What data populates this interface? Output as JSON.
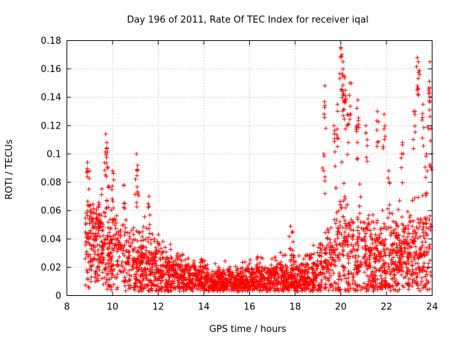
{
  "chart_data": {
    "type": "scatter",
    "title": "Day 196 of 2011, Rate Of TEC Index for receiver iqal",
    "xlabel": "GPS time / hours",
    "ylabel": "ROTI / TECUs",
    "xlim": [
      8,
      24
    ],
    "ylim": [
      0,
      0.18
    ],
    "xticks": [
      "8",
      "10",
      "12",
      "14",
      "16",
      "18",
      "20",
      "22",
      "24"
    ],
    "yticks": [
      "0",
      "0.02",
      "0.04",
      "0.06",
      "0.08",
      "0.1",
      "0.12",
      "0.14",
      "0.16",
      "0.18"
    ],
    "grid": true,
    "marker": "+",
    "color": "#ff0000",
    "series": [
      {
        "name": "ROTI",
        "envelope": [
          {
            "x": 8.8,
            "base": 0.035,
            "spread": 0.03
          },
          {
            "x": 9.5,
            "base": 0.035,
            "spread": 0.035
          },
          {
            "x": 10.5,
            "base": 0.028,
            "spread": 0.03
          },
          {
            "x": 11.5,
            "base": 0.02,
            "spread": 0.03
          },
          {
            "x": 12.5,
            "base": 0.015,
            "spread": 0.02
          },
          {
            "x": 13.5,
            "base": 0.012,
            "spread": 0.016
          },
          {
            "x": 14.5,
            "base": 0.01,
            "spread": 0.012
          },
          {
            "x": 15.5,
            "base": 0.01,
            "spread": 0.012
          },
          {
            "x": 16.5,
            "base": 0.012,
            "spread": 0.014
          },
          {
            "x": 17.5,
            "base": 0.012,
            "spread": 0.015
          },
          {
            "x": 18.5,
            "base": 0.012,
            "spread": 0.015
          },
          {
            "x": 19.2,
            "base": 0.02,
            "spread": 0.025
          },
          {
            "x": 20.0,
            "base": 0.035,
            "spread": 0.05
          },
          {
            "x": 21.0,
            "base": 0.03,
            "spread": 0.04
          },
          {
            "x": 22.0,
            "base": 0.025,
            "spread": 0.03
          },
          {
            "x": 23.0,
            "base": 0.03,
            "spread": 0.035
          },
          {
            "x": 23.95,
            "base": 0.03,
            "spread": 0.04
          }
        ],
        "spikes": [
          {
            "x": 8.9,
            "y": 0.094
          },
          {
            "x": 9.0,
            "y": 0.088
          },
          {
            "x": 9.7,
            "y": 0.114
          },
          {
            "x": 9.75,
            "y": 0.108
          },
          {
            "x": 9.8,
            "y": 0.09
          },
          {
            "x": 10.0,
            "y": 0.088
          },
          {
            "x": 11.05,
            "y": 0.1
          },
          {
            "x": 11.1,
            "y": 0.092
          },
          {
            "x": 10.5,
            "y": 0.078
          },
          {
            "x": 11.6,
            "y": 0.07
          },
          {
            "x": 17.8,
            "y": 0.049
          },
          {
            "x": 17.9,
            "y": 0.045
          },
          {
            "x": 19.3,
            "y": 0.148
          },
          {
            "x": 19.25,
            "y": 0.1
          },
          {
            "x": 19.7,
            "y": 0.12
          },
          {
            "x": 19.85,
            "y": 0.135
          },
          {
            "x": 20.0,
            "y": 0.175
          },
          {
            "x": 20.05,
            "y": 0.17
          },
          {
            "x": 20.1,
            "y": 0.16
          },
          {
            "x": 20.15,
            "y": 0.155
          },
          {
            "x": 20.2,
            "y": 0.145
          },
          {
            "x": 20.3,
            "y": 0.128
          },
          {
            "x": 20.4,
            "y": 0.15
          },
          {
            "x": 20.7,
            "y": 0.12
          },
          {
            "x": 20.75,
            "y": 0.138
          },
          {
            "x": 21.1,
            "y": 0.12
          },
          {
            "x": 21.6,
            "y": 0.13
          },
          {
            "x": 21.9,
            "y": 0.128
          },
          {
            "x": 22.1,
            "y": 0.088
          },
          {
            "x": 22.7,
            "y": 0.108
          },
          {
            "x": 23.2,
            "y": 0.13
          },
          {
            "x": 23.35,
            "y": 0.168
          },
          {
            "x": 23.4,
            "y": 0.165
          },
          {
            "x": 23.6,
            "y": 0.135
          },
          {
            "x": 23.9,
            "y": 0.165
          },
          {
            "x": 23.85,
            "y": 0.145
          },
          {
            "x": 23.95,
            "y": 0.118
          },
          {
            "x": 23.75,
            "y": 0.1
          }
        ]
      }
    ]
  }
}
